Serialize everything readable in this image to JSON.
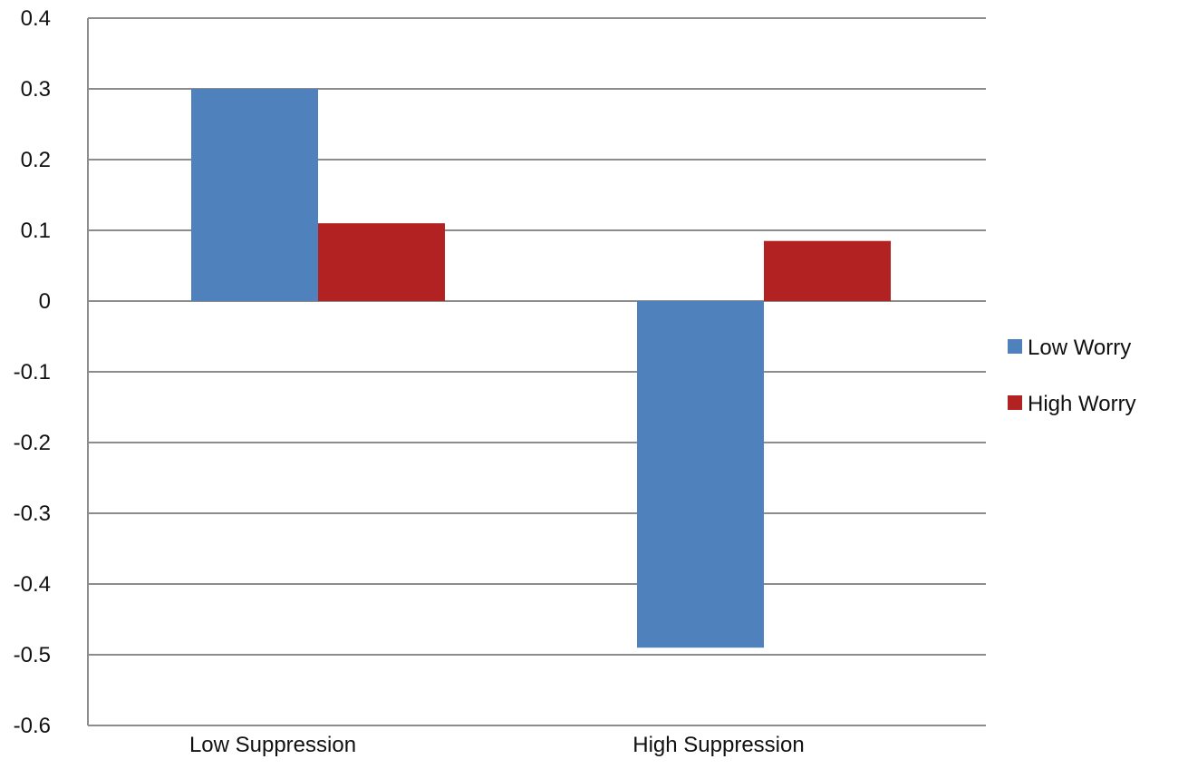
{
  "chart_data": {
    "type": "bar",
    "title": "",
    "xlabel": "",
    "ylabel": "",
    "categories": [
      "Low Suppression",
      "High Suppression"
    ],
    "series": [
      {
        "name": "Low Worry",
        "values": [
          0.3,
          -0.49
        ],
        "color": "#4f81bd"
      },
      {
        "name": "High Worry",
        "values": [
          0.11,
          0.085
        ],
        "color": "#b22222"
      }
    ],
    "ylim": [
      -0.6,
      0.4
    ],
    "yticks": [
      0.4,
      0.3,
      0.2,
      0.1,
      0,
      -0.1,
      -0.2,
      -0.3,
      -0.4,
      -0.5,
      -0.6
    ],
    "ytick_labels": [
      "0.4",
      "0.3",
      "0.2",
      "0.1",
      "0",
      "-0.1",
      "-0.2",
      "-0.3",
      "-0.4",
      "-0.5",
      "-0.6"
    ],
    "grid": true,
    "legend_position": "right"
  }
}
